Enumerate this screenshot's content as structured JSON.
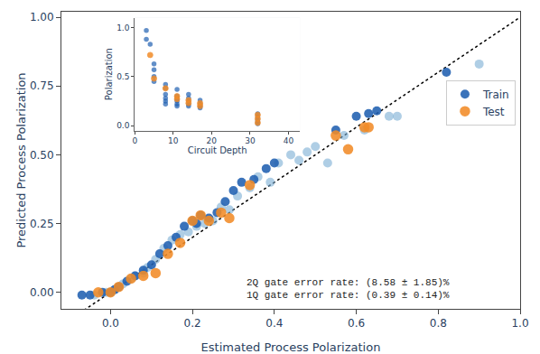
{
  "chart_data": [
    {
      "type": "scatter",
      "xlabel": "Estimated Process Polarization",
      "ylabel": "Predicted Process Polarization",
      "xlim": [
        -0.12,
        1.0
      ],
      "ylim": [
        -0.06,
        1.02
      ],
      "xticks": [
        {
          "value": 0,
          "label": "0.0"
        },
        0.2,
        0.4,
        0.6,
        0.8,
        {
          "value": 1.0,
          "label": "1.0"
        }
      ],
      "yticks": [
        {
          "value": 0.0,
          "label": "0.00"
        },
        {
          "value": 0.25,
          "label": "0.25"
        },
        {
          "value": 0.5,
          "label": "0.50"
        },
        {
          "value": 0.75,
          "label": "0.75"
        },
        {
          "value": 1.0,
          "label": "1.00"
        }
      ],
      "grid": false,
      "legend": "upper right",
      "annotation": "2Q gate error rate: (8.58 ± 1.85)%\n1Q gate error rate: (0.39 ± 0.14)%",
      "reference_line": {
        "line_style": "dotted",
        "color": "#000000"
      },
      "series": [
        {
          "color": "#7aadd4",
          "marker": "circle",
          "x": [
            -0.04,
            -0.01,
            0.01,
            0.03,
            0.05,
            0.06,
            0.08,
            0.09,
            0.11,
            0.13,
            0.15,
            0.17,
            0.19,
            0.21,
            0.23,
            0.25,
            0.27,
            0.29,
            0.31,
            0.34,
            0.36,
            0.39,
            0.41,
            0.44,
            0.46,
            0.48,
            0.5,
            0.53,
            0.57,
            0.62,
            0.68,
            0.7,
            0.9
          ],
          "values": [
            -0.01,
            0.0,
            0.01,
            0.03,
            0.05,
            0.06,
            0.07,
            0.09,
            0.12,
            0.16,
            0.19,
            0.21,
            0.22,
            0.24,
            0.25,
            0.26,
            0.31,
            0.3,
            0.35,
            0.38,
            0.42,
            0.4,
            0.47,
            0.5,
            0.48,
            0.51,
            0.53,
            0.47,
            0.57,
            0.59,
            0.64,
            0.64,
            0.83
          ]
        },
        {
          "name": "Train",
          "color": "#2060B0",
          "marker": "circle",
          "x": [
            -0.07,
            -0.05,
            -0.02,
            0.0,
            0.01,
            0.02,
            0.04,
            0.06,
            0.08,
            0.1,
            0.12,
            0.14,
            0.16,
            0.18,
            0.2,
            0.21,
            0.22,
            0.24,
            0.26,
            0.28,
            0.3,
            0.32,
            0.35,
            0.38,
            0.4,
            0.55,
            0.6,
            0.63,
            0.65,
            0.82
          ],
          "values": [
            -0.01,
            -0.01,
            0.0,
            0.0,
            0.01,
            0.02,
            0.04,
            0.06,
            0.08,
            0.1,
            0.14,
            0.17,
            0.2,
            0.24,
            0.26,
            0.25,
            0.28,
            0.27,
            0.29,
            0.33,
            0.37,
            0.4,
            0.41,
            0.45,
            0.47,
            0.59,
            0.64,
            0.65,
            0.66,
            0.8
          ]
        },
        {
          "name": "Test",
          "color": "#F28C28",
          "marker": "circle",
          "x": [
            -0.03,
            0.0,
            0.02,
            0.05,
            0.08,
            0.11,
            0.14,
            0.17,
            0.2,
            0.22,
            0.24,
            0.27,
            0.29,
            0.34,
            0.55,
            0.58,
            0.62,
            0.63
          ],
          "values": [
            0.0,
            0.0,
            0.02,
            0.05,
            0.06,
            0.07,
            0.14,
            0.18,
            0.26,
            0.28,
            0.26,
            0.29,
            0.27,
            0.39,
            0.57,
            0.52,
            0.6,
            0.6
          ]
        }
      ]
    },
    {
      "type": "scatter",
      "xlabel": "Circuit Depth",
      "ylabel": "Polarization",
      "xlim": [
        0,
        43
      ],
      "ylim": [
        -0.05,
        1.1
      ],
      "xticks": [
        0,
        10,
        20,
        30,
        40
      ],
      "yticks": [
        {
          "value": 0.0,
          "label": "0.0"
        },
        0.5,
        {
          "value": 1.0,
          "label": "1.0"
        }
      ],
      "grid": false,
      "background_color": "#e8eaf2",
      "series": [
        {
          "color": "#2060B0",
          "marker": "circle",
          "x": [
            3,
            3,
            4,
            5,
            5,
            5,
            5,
            8,
            8,
            8,
            8,
            8,
            8,
            11,
            11,
            11,
            11,
            11,
            11,
            14,
            14,
            14,
            14,
            14,
            17,
            17,
            17,
            17,
            32,
            32,
            32,
            32,
            32
          ],
          "values": [
            0.97,
            0.88,
            0.83,
            0.63,
            0.57,
            0.5,
            0.45,
            0.42,
            0.38,
            0.32,
            0.28,
            0.25,
            0.22,
            0.37,
            0.3,
            0.27,
            0.25,
            0.22,
            0.2,
            0.32,
            0.28,
            0.25,
            0.22,
            0.2,
            0.26,
            0.22,
            0.2,
            0.18,
            0.12,
            0.09,
            0.06,
            0.04,
            0.02
          ]
        },
        {
          "color": "#F28C28",
          "marker": "circle",
          "x": [
            4,
            5,
            8,
            11,
            11,
            14,
            14,
            17,
            17,
            32,
            32,
            32
          ],
          "values": [
            0.72,
            0.48,
            0.38,
            0.3,
            0.27,
            0.26,
            0.23,
            0.23,
            0.2,
            0.11,
            0.07,
            0.03
          ]
        }
      ]
    }
  ]
}
